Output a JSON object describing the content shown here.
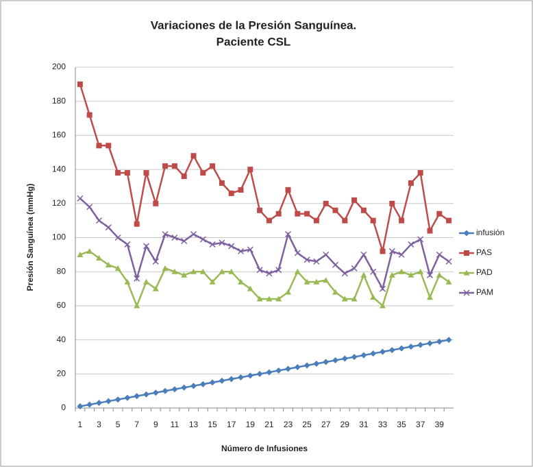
{
  "chart_data": {
    "type": "line",
    "title": "Variaciones de la Presión Sanguínea.",
    "subtitle": "Paciente CSL",
    "x_label": "Número de Infusiones",
    "y_label": "Presión Sanguínea (mmHg)",
    "categories": [
      1,
      null,
      3,
      null,
      5,
      null,
      7,
      null,
      9,
      null,
      11,
      null,
      13,
      null,
      15,
      null,
      17,
      null,
      19,
      null,
      21,
      null,
      23,
      null,
      25,
      null,
      27,
      null,
      29,
      null,
      31,
      null,
      33,
      null,
      35,
      null,
      37,
      null,
      39,
      null
    ],
    "ylim": [
      0,
      200
    ],
    "yticks": [
      0,
      20,
      40,
      60,
      80,
      100,
      120,
      140,
      160,
      180,
      200
    ],
    "grid": true,
    "legend": "right",
    "series": [
      {
        "name": "infusión",
        "color": "#4a7ebb",
        "marker": "diamond",
        "values": [
          1,
          2,
          3,
          4,
          5,
          6,
          7,
          8,
          9,
          10,
          11,
          12,
          13,
          14,
          15,
          16,
          17,
          18,
          19,
          20,
          21,
          22,
          23,
          24,
          25,
          26,
          27,
          28,
          29,
          30,
          31,
          32,
          33,
          34,
          35,
          36,
          37,
          38,
          39,
          40
        ]
      },
      {
        "name": "PAS",
        "color": "#be4b48",
        "marker": "square",
        "values": [
          190,
          172,
          154,
          154,
          138,
          138,
          108,
          138,
          120,
          142,
          142,
          136,
          148,
          138,
          142,
          132,
          126,
          128,
          140,
          116,
          110,
          114,
          128,
          114,
          114,
          110,
          120,
          116,
          110,
          122,
          116,
          110,
          92,
          120,
          110,
          132,
          138,
          104,
          114,
          110
        ]
      },
      {
        "name": "PAD",
        "color": "#98b954",
        "marker": "triangle",
        "values": [
          90,
          92,
          88,
          84,
          82,
          74,
          60,
          74,
          70,
          82,
          80,
          78,
          80,
          80,
          74,
          80,
          80,
          74,
          70,
          64,
          64,
          64,
          68,
          80,
          74,
          74,
          75,
          68,
          64,
          64,
          78,
          65,
          60,
          78,
          80,
          78,
          80,
          65,
          78,
          74
        ]
      },
      {
        "name": "PAM",
        "color": "#7d60a0",
        "marker": "x",
        "values": [
          123,
          118,
          110,
          106,
          100,
          96,
          76,
          95,
          86,
          102,
          100,
          98,
          102,
          99,
          96,
          97,
          95,
          92,
          93,
          81,
          79,
          81,
          102,
          91,
          87,
          86,
          90,
          84,
          79,
          82,
          90,
          80,
          70,
          92,
          90,
          96,
          99,
          78,
          90,
          86
        ]
      }
    ]
  }
}
